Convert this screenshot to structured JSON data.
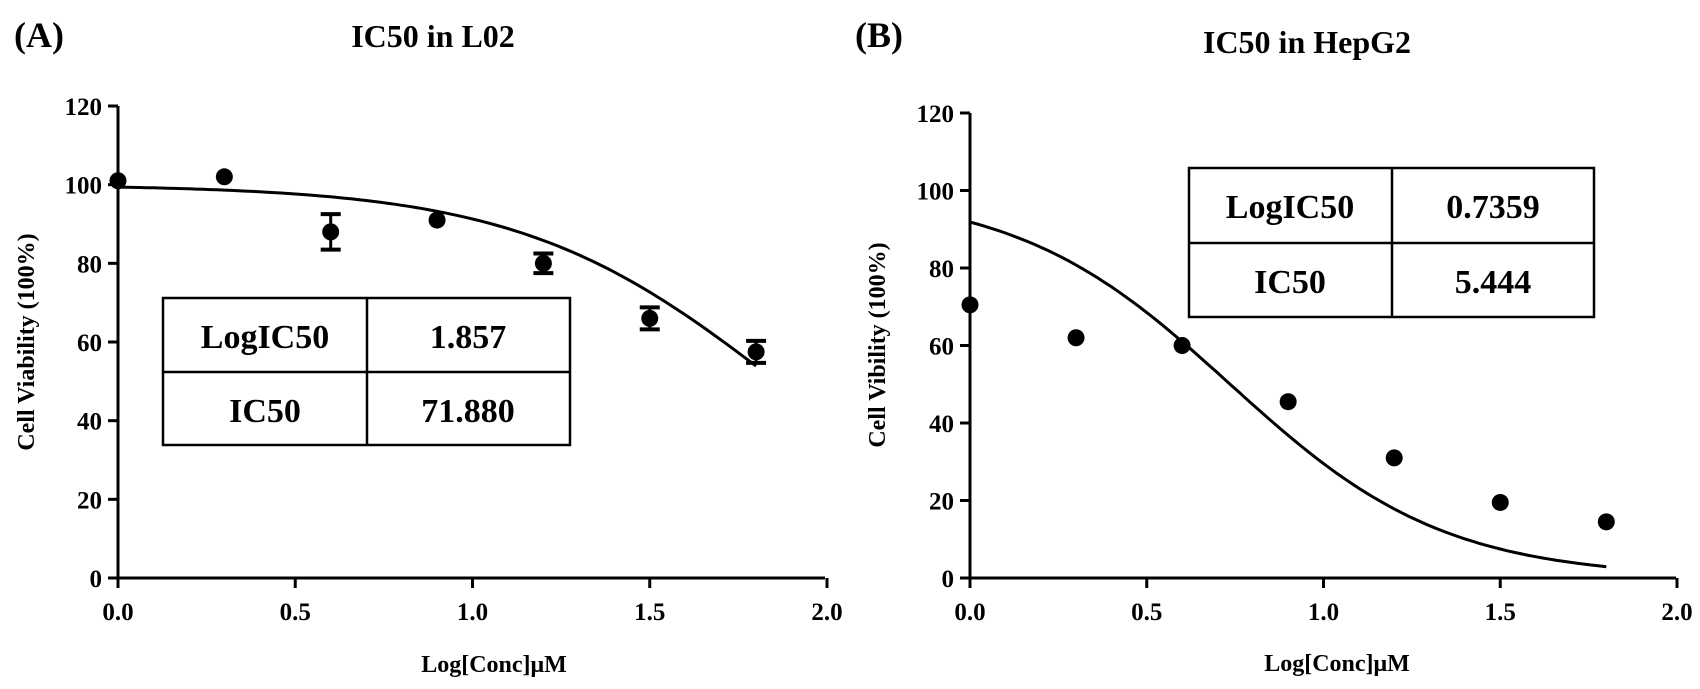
{
  "chart_data": [
    {
      "panel_label": "(A)",
      "type": "scatter",
      "title": "IC50 in L02",
      "xlabel": "Log[Conc]μM",
      "ylabel": "Cell Viability (100%)",
      "xlim": [
        0,
        2
      ],
      "ylim": [
        0,
        120
      ],
      "x_ticks": [
        0,
        0.5,
        1.0,
        1.5,
        2.0
      ],
      "x_tick_labels": [
        "0.0",
        "0.5",
        "1.0",
        "1.5",
        "2.0"
      ],
      "y_ticks": [
        0,
        20,
        40,
        60,
        80,
        100,
        120
      ],
      "y_tick_labels": [
        "0",
        "20",
        "40",
        "60",
        "80",
        "100",
        "120"
      ],
      "points": [
        {
          "x": 0.0,
          "y": 101,
          "err": 0
        },
        {
          "x": 0.3,
          "y": 102,
          "err": 0
        },
        {
          "x": 0.6,
          "y": 88,
          "err": 4.5
        },
        {
          "x": 0.9,
          "y": 91,
          "err": 0
        },
        {
          "x": 1.2,
          "y": 80,
          "err": 2.5
        },
        {
          "x": 1.5,
          "y": 66,
          "err": 2.8
        },
        {
          "x": 1.8,
          "y": 57.5,
          "err": 2.8
        }
      ],
      "fit": {
        "top": 100,
        "bottom": 0,
        "logIC50": 1.857,
        "hill": -1.19,
        "x_range": [
          0,
          1.8
        ]
      },
      "table": [
        [
          "LogIC50",
          "1.857"
        ],
        [
          "IC50",
          "71.880"
        ]
      ]
    },
    {
      "panel_label": "(B)",
      "type": "scatter",
      "title": "IC50 in HepG2",
      "xlabel": "Log[Conc]μM",
      "ylabel": "Cell Vibility (100%)",
      "xlim": [
        0,
        2
      ],
      "ylim": [
        0,
        120
      ],
      "x_ticks": [
        0,
        0.5,
        1.0,
        1.5,
        2.0
      ],
      "x_tick_labels": [
        "0.0",
        "0.5",
        "1.0",
        "1.5",
        "2.0"
      ],
      "y_ticks": [
        0,
        20,
        40,
        60,
        80,
        100,
        120
      ],
      "y_tick_labels": [
        "0",
        "20",
        "40",
        "60",
        "80",
        "100",
        "120"
      ],
      "points": [
        {
          "x": 0.0,
          "y": 70.5,
          "err": 0
        },
        {
          "x": 0.3,
          "y": 62,
          "err": 0
        },
        {
          "x": 0.6,
          "y": 60,
          "err": 0
        },
        {
          "x": 0.9,
          "y": 45.5,
          "err": 0
        },
        {
          "x": 1.2,
          "y": 31,
          "err": 0
        },
        {
          "x": 1.5,
          "y": 19.5,
          "err": 0
        },
        {
          "x": 1.8,
          "y": 14.5,
          "err": 0
        }
      ],
      "fit": {
        "top": 100,
        "bottom": 0,
        "logIC50": 0.7359,
        "hill": -1.43,
        "x_range": [
          0,
          1.8
        ]
      },
      "table": [
        [
          "LogIC50",
          "0.7359"
        ],
        [
          "IC50",
          "5.444"
        ]
      ]
    }
  ]
}
